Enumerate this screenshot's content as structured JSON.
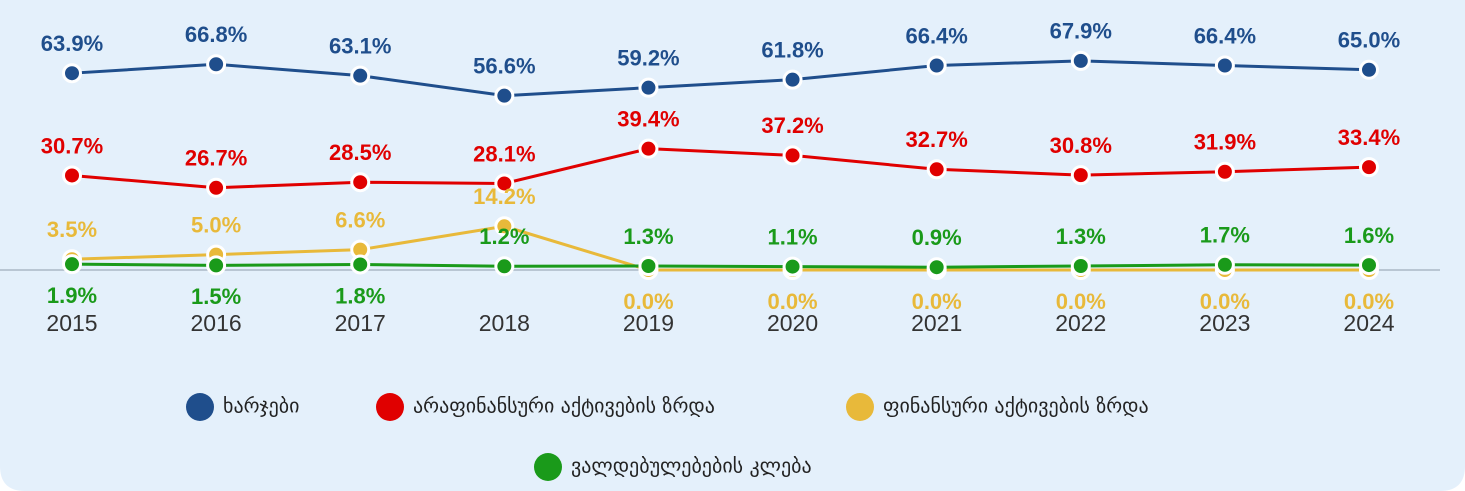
{
  "chart_data": {
    "type": "line",
    "categories": [
      "2015",
      "2016",
      "2017",
      "2018",
      "2019",
      "2020",
      "2021",
      "2022",
      "2023",
      "2024"
    ],
    "ylim": [
      0,
      70
    ],
    "series": [
      {
        "name": "ხარჯები",
        "color": "#1f4e8c",
        "values": [
          63.9,
          66.8,
          63.1,
          56.6,
          59.2,
          61.8,
          66.4,
          67.9,
          66.4,
          65.0
        ],
        "value_labels": [
          "63.9%",
          "66.8%",
          "63.1%",
          "56.6%",
          "59.2%",
          "61.8%",
          "66.4%",
          "67.9%",
          "66.4%",
          "65.0%"
        ]
      },
      {
        "name": "არაფინანსური აქტივების ზრდა",
        "color": "#e00000",
        "values": [
          30.7,
          26.7,
          28.5,
          28.1,
          39.4,
          37.2,
          32.7,
          30.8,
          31.9,
          33.4
        ],
        "value_labels": [
          "30.7%",
          "26.7%",
          "28.5%",
          "28.1%",
          "39.4%",
          "37.2%",
          "32.7%",
          "30.8%",
          "31.9%",
          "33.4%"
        ]
      },
      {
        "name": "ფინანსური აქტივების ზრდა",
        "color": "#e8b93a",
        "values": [
          3.5,
          5.0,
          6.6,
          14.2,
          0,
          0,
          0,
          0,
          0,
          0
        ],
        "value_labels": [
          "3.5%",
          "5.0%",
          "6.6%",
          "14.2%",
          "0.0%",
          "0.0%",
          "0.0%",
          "0.0%",
          "0.0%",
          "0.0%"
        ]
      },
      {
        "name": "ვალდებულებების კლება",
        "color": "#1a9a1a",
        "values": [
          1.9,
          1.5,
          1.8,
          1.2,
          1.3,
          1.1,
          0.9,
          1.3,
          1.7,
          1.6
        ],
        "value_labels": [
          "1.9%",
          "1.5%",
          "1.8%",
          "1.2%",
          "1.3%",
          "1.1%",
          "0.9%",
          "1.3%",
          "1.7%",
          "1.6%"
        ]
      }
    ]
  }
}
